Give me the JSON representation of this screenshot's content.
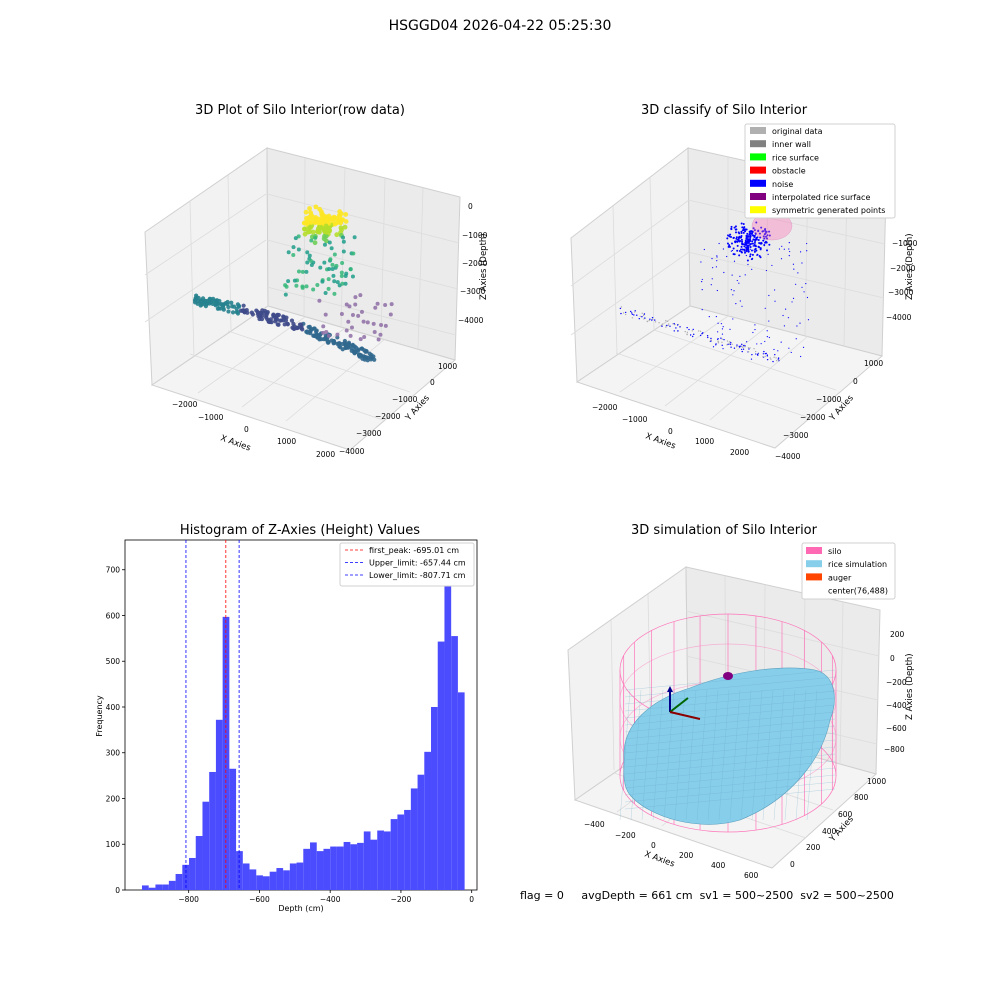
{
  "figure_title": "HSGGD04 2026-04-22 05:25:30",
  "panels": {
    "raw": {
      "title": "3D Plot of Silo Interior(row data)",
      "xlabel": "X Axies",
      "ylabel": "Y Axies",
      "zlabel": "Z Axies (Depth)",
      "xticks": [
        "−2000",
        "−1000",
        "0",
        "1000",
        "2000"
      ],
      "yticks": [
        "1000",
        "0",
        "−1000",
        "−2000",
        "−3000",
        "−4000"
      ],
      "zticks": [
        "0",
        "−1000",
        "−2000",
        "−3000",
        "−4000"
      ]
    },
    "classify": {
      "title": "3D classify of Silo Interior",
      "xlabel": "X Axies",
      "ylabel": "Y Axies",
      "zlabel": "Z Axies (Depth)",
      "xticks": [
        "−2000",
        "−1000",
        "0",
        "1000",
        "2000"
      ],
      "yticks": [
        "1000",
        "0",
        "−1000",
        "−2000",
        "−3000",
        "−4000"
      ],
      "zticks": [
        "0",
        "−1000",
        "−2000",
        "−3000",
        "−4000"
      ],
      "legend": [
        {
          "label": "original data",
          "color": "#b0b0b0"
        },
        {
          "label": "inner wall",
          "color": "#808080"
        },
        {
          "label": "rice surface",
          "color": "#00ff00"
        },
        {
          "label": "obstacle",
          "color": "#ff0000"
        },
        {
          "label": "noise",
          "color": "#0000ff"
        },
        {
          "label": "interpolated rice surface",
          "color": "#800080"
        },
        {
          "label": "symmetric generated points",
          "color": "#ffff00"
        }
      ]
    },
    "simulation": {
      "title": "3D simulation of Silo Interior",
      "xlabel": "X Axies",
      "ylabel": "Y Axies",
      "zlabel": "Z Axies (Depth)",
      "xticks": [
        "−400",
        "−200",
        "0",
        "200",
        "400",
        "600"
      ],
      "yticks": [
        "1000",
        "800",
        "600",
        "400",
        "200",
        "0"
      ],
      "zticks": [
        "200",
        "0",
        "−200",
        "−400",
        "−600",
        "−800"
      ],
      "legend": [
        {
          "label": "silo",
          "color": "#ff69b4"
        },
        {
          "label": "rice simulation",
          "color": "#87ceeb"
        },
        {
          "label": "auger",
          "color": "#ff4500"
        },
        {
          "label": "center(76,488)",
          "color": ""
        }
      ]
    }
  },
  "chart_data": [
    {
      "type": "bar",
      "title": "Histogram of Z-Axies (Height) Values",
      "xlabel": "Depth (cm)",
      "ylabel": "Frequency",
      "xlim": [
        -980,
        15
      ],
      "ylim": [
        0,
        765
      ],
      "xticks": [
        -800,
        -600,
        -400,
        -200,
        0
      ],
      "yticks": [
        0,
        100,
        200,
        300,
        400,
        500,
        600,
        700
      ],
      "bin_width": 19,
      "bin_starts": [
        -932,
        -913,
        -894,
        -875,
        -856,
        -837,
        -818,
        -799,
        -780,
        -761,
        -742,
        -723,
        -704,
        -685,
        -666,
        -647,
        -628,
        -609,
        -590,
        -571,
        -552,
        -533,
        -514,
        -495,
        -476,
        -457,
        -438,
        -419,
        -400,
        -381,
        -362,
        -343,
        -324,
        -305,
        -286,
        -267,
        -248,
        -229,
        -210,
        -191,
        -172,
        -153,
        -134,
        -115,
        -96,
        -77,
        -58,
        -39,
        -20
      ],
      "values": [
        10,
        5,
        12,
        12,
        20,
        35,
        55,
        70,
        118,
        193,
        258,
        372,
        597,
        265,
        85,
        58,
        45,
        32,
        30,
        40,
        48,
        43,
        58,
        60,
        90,
        104,
        85,
        90,
        95,
        95,
        105,
        100,
        103,
        128,
        110,
        130,
        128,
        155,
        165,
        175,
        222,
        252,
        302,
        400,
        543,
        722,
        555,
        432,
        0
      ],
      "bar_color": "#4c4cff",
      "vlines": [
        {
          "label": "first_peak: -695.01 cm",
          "x": -695.01,
          "color": "#ff0000"
        },
        {
          "label": "Upper_limit: -657.44 cm",
          "x": -657.44,
          "color": "#0000ff"
        },
        {
          "label": "Lower_limit: -807.71 cm",
          "x": -807.71,
          "color": "#0000ff"
        }
      ],
      "legend_position": "top-right"
    }
  ],
  "footer": {
    "flag": "flag = 0",
    "avg": "avgDepth = 661 cm",
    "sv1": "sv1 = 500~2500",
    "sv2": "sv2 = 500~2500"
  }
}
